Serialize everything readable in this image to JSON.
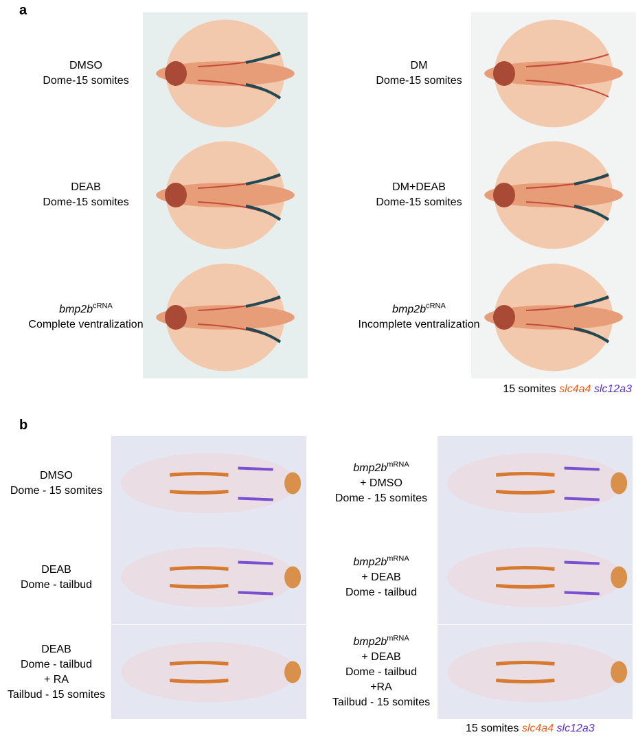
{
  "panels": [
    {
      "letter": "a",
      "items": [
        {
          "lines": [
            "DMSO",
            "Dome-15 somites"
          ]
        },
        {
          "lines": [
            "DM",
            "Dome-15 somites"
          ]
        },
        {
          "lines": [
            "DEAB",
            "Dome-15 somites"
          ]
        },
        {
          "lines": [
            "DM+DEAB",
            "Dome-15 somites"
          ]
        },
        {
          "gene": "bmp2b",
          "sup": "cRNA",
          "lines": [
            "Complete ventralization"
          ]
        },
        {
          "gene": "bmp2b",
          "sup": "cRNA",
          "lines": [
            "Incomplete ventralization"
          ]
        }
      ],
      "legend": {
        "stage": "15 somites",
        "gene1": "slc4a4",
        "gene2": "slc12a3"
      }
    },
    {
      "letter": "b",
      "items": [
        {
          "lines": [
            "DMSO",
            "Dome - 15 somites"
          ]
        },
        {
          "gene": "bmp2b",
          "sup": "mRNA",
          "lines": [
            "+ DMSO",
            "Dome - 15 somites"
          ]
        },
        {
          "lines": [
            "DEAB",
            "Dome - tailbud"
          ]
        },
        {
          "gene": "bmp2b",
          "sup": "mRNA",
          "lines": [
            "+ DEAB",
            "Dome - tailbud"
          ]
        },
        {
          "lines": [
            "DEAB",
            "Dome - tailbud",
            "+ RA",
            "Tailbud - 15 somites"
          ]
        },
        {
          "gene": "bmp2b",
          "sup": "mRNA",
          "lines": [
            "+ DEAB",
            "Dome - tailbud",
            "+RA",
            "Tailbud - 15 somites"
          ]
        }
      ],
      "legend": {
        "stage": "15 somites",
        "gene1": "slc4a4",
        "gene2": "slc12a3"
      }
    }
  ]
}
